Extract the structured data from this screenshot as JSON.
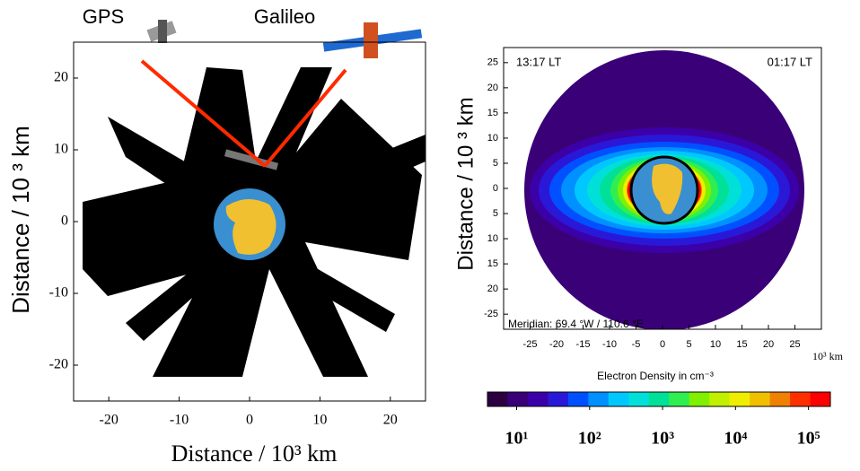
{
  "chart_data": [
    {
      "type": "raypaths",
      "labels": [
        "GPS",
        "Galileo"
      ],
      "xlabel": "Distance / 10³ km",
      "ylabel": "Distance / 10 ³ km",
      "xlim": [
        -25,
        25
      ],
      "xticks": [
        -20,
        -10,
        0,
        10,
        20
      ],
      "ylim": [
        -25,
        25
      ],
      "yticks": [
        -20,
        -10,
        0,
        10,
        20
      ],
      "color": "#000000",
      "ray_color": "#ff2a00"
    },
    {
      "type": "density",
      "annotations": [
        "13:17 LT",
        "01:17 LT",
        "Meridian: 69.4 °W / 110.6 °E"
      ],
      "xlabel": "Electron Density in cm⁻³",
      "xunit": "10³ km",
      "ylabel": "Distance / 10 ³ km",
      "xlim": [
        -30,
        30
      ],
      "xticks": [
        -25,
        -20,
        -15,
        -10,
        -5,
        0,
        5,
        10,
        15,
        20,
        25
      ],
      "ylim": [
        -28,
        28
      ],
      "yticks": [
        25,
        20,
        15,
        10,
        5,
        0,
        {
          "value": -5,
          "label": "5"
        },
        {
          "value": -10,
          "label": "10"
        },
        {
          "value": -15,
          "label": "15"
        },
        {
          "value": -20,
          "label": "20"
        },
        -25
      ],
      "colorbar": {
        "clim": [
          0.6,
          5.3
        ],
        "log": true,
        "ticks": [
          {
            "value": 1,
            "label": "10¹"
          },
          {
            "value": 2,
            "label": "10²"
          },
          {
            "value": 3,
            "label": "10³"
          },
          {
            "value": 4,
            "label": "10⁴"
          },
          {
            "value": 5,
            "label": "10⁵"
          }
        ],
        "colors": [
          "#2c0040",
          "#3a0078",
          "#3c00a8",
          "#2a18d8",
          "#0050ff",
          "#0090ff",
          "#00c8ff",
          "#00e0d8",
          "#00e098",
          "#30ee50",
          "#80f000",
          "#c0f000",
          "#f0ee00",
          "#f0c000",
          "#f08000",
          "#ff3000",
          "#ff0000"
        ]
      }
    }
  ]
}
